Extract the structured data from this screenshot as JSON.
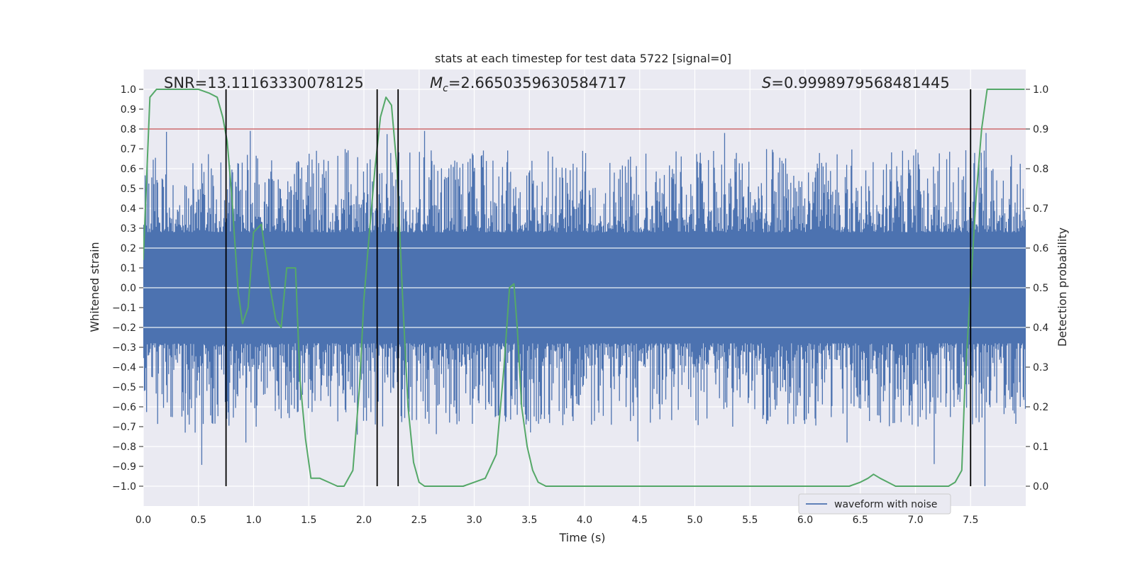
{
  "chart_data": {
    "type": "line",
    "title": "stats at each timestep for test data 5722 [signal=0]",
    "xlabel": "Time (s)",
    "ylabel_left": "Whitened strain",
    "ylabel_right": "Detection probability",
    "xlim": [
      0.0,
      8.0
    ],
    "ylim_left": [
      -1.1,
      1.1
    ],
    "ylim_right": [
      -0.05,
      1.05
    ],
    "x_ticks": [
      0.0,
      0.5,
      1.0,
      1.5,
      2.0,
      2.5,
      3.0,
      3.5,
      4.0,
      4.5,
      5.0,
      5.5,
      6.0,
      6.5,
      7.0,
      7.5
    ],
    "x_tick_labels": [
      "0.0",
      "0.5",
      "1.0",
      "1.5",
      "2.0",
      "2.5",
      "3.0",
      "3.5",
      "4.0",
      "4.5",
      "5.0",
      "5.5",
      "6.0",
      "6.5",
      "7.0",
      "7.5"
    ],
    "y_left_ticks": [
      -1.0,
      -0.9,
      -0.8,
      -0.7,
      -0.6,
      -0.5,
      -0.4,
      -0.3,
      -0.2,
      -0.1,
      0.0,
      0.1,
      0.2,
      0.3,
      0.4,
      0.5,
      0.6,
      0.7,
      0.8,
      0.9,
      1.0
    ],
    "y_left_tick_labels": [
      "−1.0",
      "−0.9",
      "−0.8",
      "−0.7",
      "−0.6",
      "−0.5",
      "−0.4",
      "−0.3",
      "−0.2",
      "−0.1",
      "0.0",
      "0.1",
      "0.2",
      "0.3",
      "0.4",
      "0.5",
      "0.6",
      "0.7",
      "0.8",
      "0.9",
      "1.0"
    ],
    "y_right_ticks": [
      0.0,
      0.1,
      0.2,
      0.3,
      0.4,
      0.5,
      0.6,
      0.7,
      0.8,
      0.9,
      1.0
    ],
    "y_right_tick_labels": [
      "0.0",
      "0.1",
      "0.2",
      "0.3",
      "0.4",
      "0.5",
      "0.6",
      "0.7",
      "0.8",
      "0.9",
      "1.0"
    ],
    "annotations": {
      "snr": "SNR=13.11163330078125",
      "mc_symbol": "M",
      "mc_sub": "c",
      "mc_value": "=2.6650359630584717",
      "s_symbol": "S",
      "s_value": "=0.9998979568481445"
    },
    "threshold": {
      "y_left": 0.8,
      "color": "#c44e52"
    },
    "vertical_lines": {
      "x": [
        0.75,
        2.12,
        2.31,
        7.5
      ],
      "ymin": -1.0,
      "ymax": 1.0,
      "color": "#000000"
    },
    "series": [
      {
        "name": "waveform with noise",
        "axis": "left",
        "color": "#4c72b0",
        "kind": "noise",
        "sample_count": 1200,
        "min": -1.0,
        "max": 0.79,
        "core_amplitude": 0.2
      },
      {
        "name": "detection probability",
        "axis": "right",
        "color": "#55a868",
        "x": [
          0.0,
          0.06,
          0.12,
          0.2,
          0.3,
          0.4,
          0.5,
          0.6,
          0.67,
          0.72,
          0.76,
          0.8,
          0.86,
          0.9,
          0.95,
          1.0,
          1.07,
          1.15,
          1.2,
          1.25,
          1.3,
          1.38,
          1.42,
          1.47,
          1.52,
          1.6,
          1.68,
          1.76,
          1.82,
          1.9,
          1.96,
          2.0,
          2.05,
          2.1,
          2.15,
          2.2,
          2.25,
          2.3,
          2.35,
          2.4,
          2.45,
          2.5,
          2.55,
          2.6,
          2.7,
          2.8,
          2.9,
          3.0,
          3.1,
          3.2,
          3.27,
          3.32,
          3.36,
          3.39,
          3.43,
          3.48,
          3.53,
          3.58,
          3.65,
          3.75,
          3.85,
          3.95,
          4.05,
          4.15,
          4.25,
          4.35,
          4.5,
          4.6,
          4.7,
          4.8,
          4.9,
          5.0,
          5.1,
          5.2,
          5.3,
          5.4,
          5.5,
          5.6,
          5.7,
          5.8,
          5.9,
          6.0,
          6.1,
          6.2,
          6.3,
          6.4,
          6.5,
          6.57,
          6.62,
          6.68,
          6.75,
          6.82,
          6.9,
          7.0,
          7.1,
          7.2,
          7.3,
          7.36,
          7.42,
          7.45,
          7.5,
          7.55,
          7.6,
          7.65,
          7.7,
          7.8,
          7.9,
          7.99
        ],
        "values": [
          0.57,
          0.98,
          1.0,
          1.0,
          1.0,
          1.0,
          1.0,
          0.99,
          0.98,
          0.93,
          0.87,
          0.74,
          0.49,
          0.41,
          0.45,
          0.64,
          0.66,
          0.5,
          0.42,
          0.4,
          0.55,
          0.55,
          0.27,
          0.12,
          0.02,
          0.02,
          0.01,
          0.0,
          0.0,
          0.04,
          0.25,
          0.47,
          0.64,
          0.8,
          0.93,
          0.98,
          0.96,
          0.8,
          0.48,
          0.2,
          0.06,
          0.01,
          0.0,
          0.0,
          0.0,
          0.0,
          0.0,
          0.01,
          0.02,
          0.08,
          0.3,
          0.5,
          0.51,
          0.4,
          0.2,
          0.1,
          0.04,
          0.01,
          0.0,
          0.0,
          0.0,
          0.0,
          0.0,
          0.0,
          0.0,
          0.0,
          0.0,
          0.0,
          0.0,
          0.0,
          0.0,
          0.0,
          0.0,
          0.0,
          0.0,
          0.0,
          0.0,
          0.0,
          0.0,
          0.0,
          0.0,
          0.0,
          0.0,
          0.0,
          0.0,
          0.0,
          0.01,
          0.02,
          0.03,
          0.02,
          0.01,
          0.0,
          0.0,
          0.0,
          0.0,
          0.0,
          0.0,
          0.01,
          0.04,
          0.27,
          0.5,
          0.73,
          0.9,
          1.0,
          1.0,
          1.0,
          1.0,
          1.0
        ]
      }
    ],
    "legend": {
      "entries": [
        "waveform with noise"
      ],
      "placement": "bottom-right"
    },
    "grid": true,
    "colors": {
      "plot_bg": "#eaeaf2",
      "grid": "#ffffff",
      "text": "#262626"
    }
  }
}
